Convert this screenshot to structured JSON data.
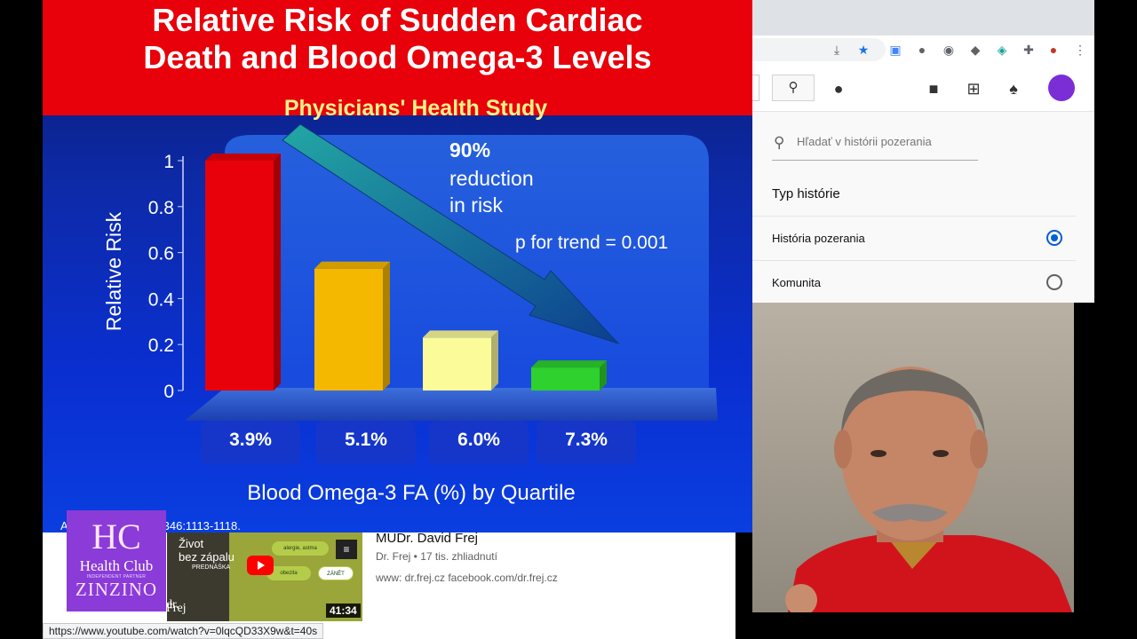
{
  "slide": {
    "title_line1": "Relative Risk of Sudden Cardiac",
    "title_line2": "Death and Blood Omega-3 Levels",
    "subtitle": "Physicians' Health Study",
    "annotation_pct": "90%",
    "annotation_text1": "reduction",
    "annotation_text2": "in risk",
    "trend": "p for trend = 0.001",
    "citation": "A... ngl J Med 2002:346:1113-1118."
  },
  "chart_data": {
    "type": "bar",
    "categories": [
      "3.9%",
      "5.1%",
      "6.0%",
      "7.3%"
    ],
    "values": [
      1.0,
      0.53,
      0.23,
      0.1
    ],
    "colors": [
      "#e8000a",
      "#f5b800",
      "#fbfb9a",
      "#2ed12e"
    ],
    "ylabel": "Relative Risk",
    "xlabel": "Blood Omega-3 FA (%) by Quartile",
    "ylim": [
      0,
      1
    ],
    "yticks": [
      "0",
      "0.2",
      "0.4",
      "0.6",
      "0.8",
      "1"
    ]
  },
  "browser": {
    "history_search_placeholder": "Hľadať v histórii pozerania",
    "type_title": "Typ histórie",
    "options": [
      {
        "label": "História pozerania",
        "selected": true
      },
      {
        "label": "Komunita",
        "selected": false
      }
    ],
    "status_url": "https://www.youtube.com/watch?v=0lqcQD33X9w&t=40s"
  },
  "video": {
    "logo_letters": "HC",
    "logo_name": "Health Club",
    "logo_partner": "INDEPENDENT PARTNER",
    "logo_brand": "ZINZINO",
    "thumb_text1": "Život",
    "thumb_text2": "bez zápalu",
    "thumb_text3": "PREDNÁŠKA",
    "thumb_dr": "dr.",
    "thumb_name": "Frej",
    "pills": [
      "alergie, astma",
      "obezita",
      "ZÁNĚT"
    ],
    "duration": "41:34",
    "title": "MUDr. David Frej",
    "meta": "Dr. Frej • 17 tis. zhliadnutí",
    "desc": "www: dr.frej.cz facebook.com/dr.frej.cz"
  }
}
